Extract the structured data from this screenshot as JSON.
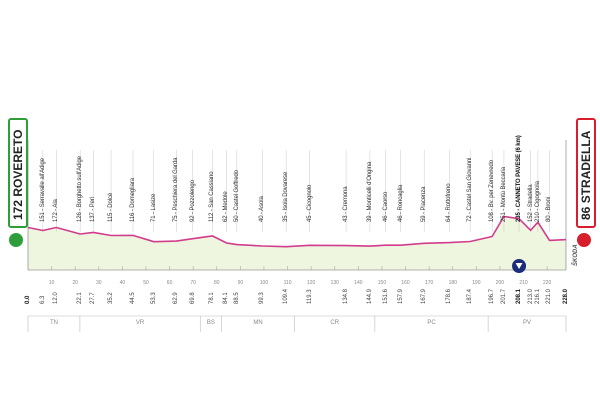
{
  "stage": {
    "start_city": "ROVERETO",
    "start_elev": "172",
    "finish_city": "STRADELLA",
    "finish_elev": "86",
    "start_color": "#2e9e3a",
    "finish_color": "#d81e2c",
    "profile_color": "#d23c8c",
    "fill_color": "#eef6df"
  },
  "sponsor_logo": "ŠKODA",
  "waypoints": [
    {
      "elev": "151",
      "name": "Serravalle all'Adige",
      "km": "6.3"
    },
    {
      "elev": "172",
      "name": "Ala",
      "km": "12.0"
    },
    {
      "elev": "126",
      "name": "Borghetto sull'Adige",
      "km": "22.1"
    },
    {
      "elev": "137",
      "name": "Peri",
      "km": "27.7"
    },
    {
      "elev": "115",
      "name": "Dolcè",
      "km": "35.2"
    },
    {
      "elev": "116",
      "name": "Domegliara",
      "km": "44.5"
    },
    {
      "elev": "71",
      "name": "Lasize",
      "km": "53.3"
    },
    {
      "elev": "75",
      "name": "Peschiera del Garda",
      "km": "62.9"
    },
    {
      "elev": "92",
      "name": "Pozzolengo",
      "km": "69.8"
    },
    {
      "elev": "112",
      "name": "San Cassiano",
      "km": "78.1"
    },
    {
      "elev": "62",
      "name": "Medole",
      "km": "84.1"
    },
    {
      "elev": "50",
      "name": "Castel Goffredo",
      "km": "88.5"
    },
    {
      "elev": "40",
      "name": "Asola",
      "km": "99.3"
    },
    {
      "elev": "35",
      "name": "Isola Dovarese",
      "km": "109.4"
    },
    {
      "elev": "45",
      "name": "Cicognolo",
      "km": "119.3"
    },
    {
      "elev": "43",
      "name": "Cremona",
      "km": "134.8"
    },
    {
      "elev": "39",
      "name": "Monticelli d'Ongina",
      "km": "144.9"
    },
    {
      "elev": "46",
      "name": "Caorso",
      "km": "151.6"
    },
    {
      "elev": "46",
      "name": "Roncaglia",
      "km": "157.9"
    },
    {
      "elev": "59",
      "name": "Piacenza",
      "km": "167.9"
    },
    {
      "elev": "64",
      "name": "Rottofreno",
      "km": "178.6"
    },
    {
      "elev": "72",
      "name": "Castel San Giovanni",
      "km": "187.4"
    },
    {
      "elev": "108",
      "name": "Bv. per Zenevredo",
      "km": "196.7"
    },
    {
      "elev": "251",
      "name": "Montù Beccaria",
      "km": "201.7"
    },
    {
      "elev": "235",
      "name": "CANNETO PAVESE",
      "km": "208.1",
      "bold": true,
      "note": "(6 km)"
    },
    {
      "elev": "152",
      "name": "Stradella",
      "km": "213.0"
    },
    {
      "elev": "210",
      "name": "Cigognola",
      "km": "216.1"
    },
    {
      "elev": "80",
      "name": "Broni",
      "km": "221.0"
    }
  ],
  "start_km": "0.0",
  "finish_km": "228.0",
  "axis_ticks": [
    "10",
    "20",
    "30",
    "40",
    "50",
    "60",
    "70",
    "80",
    "90",
    "100",
    "110",
    "120",
    "130",
    "140",
    "150",
    "160",
    "170",
    "180",
    "190",
    "200",
    "210",
    "220"
  ],
  "regions": [
    {
      "code": "TN",
      "from_km": 0,
      "to_km": 22
    },
    {
      "code": "VR",
      "from_km": 22,
      "to_km": 73
    },
    {
      "code": "BS",
      "from_km": 73,
      "to_km": 82
    },
    {
      "code": "MN",
      "from_km": 82,
      "to_km": 113
    },
    {
      "code": "CR",
      "from_km": 113,
      "to_km": 147
    },
    {
      "code": "PC",
      "from_km": 147,
      "to_km": 195
    },
    {
      "code": "PV",
      "from_km": 195,
      "to_km": 228
    }
  ]
}
